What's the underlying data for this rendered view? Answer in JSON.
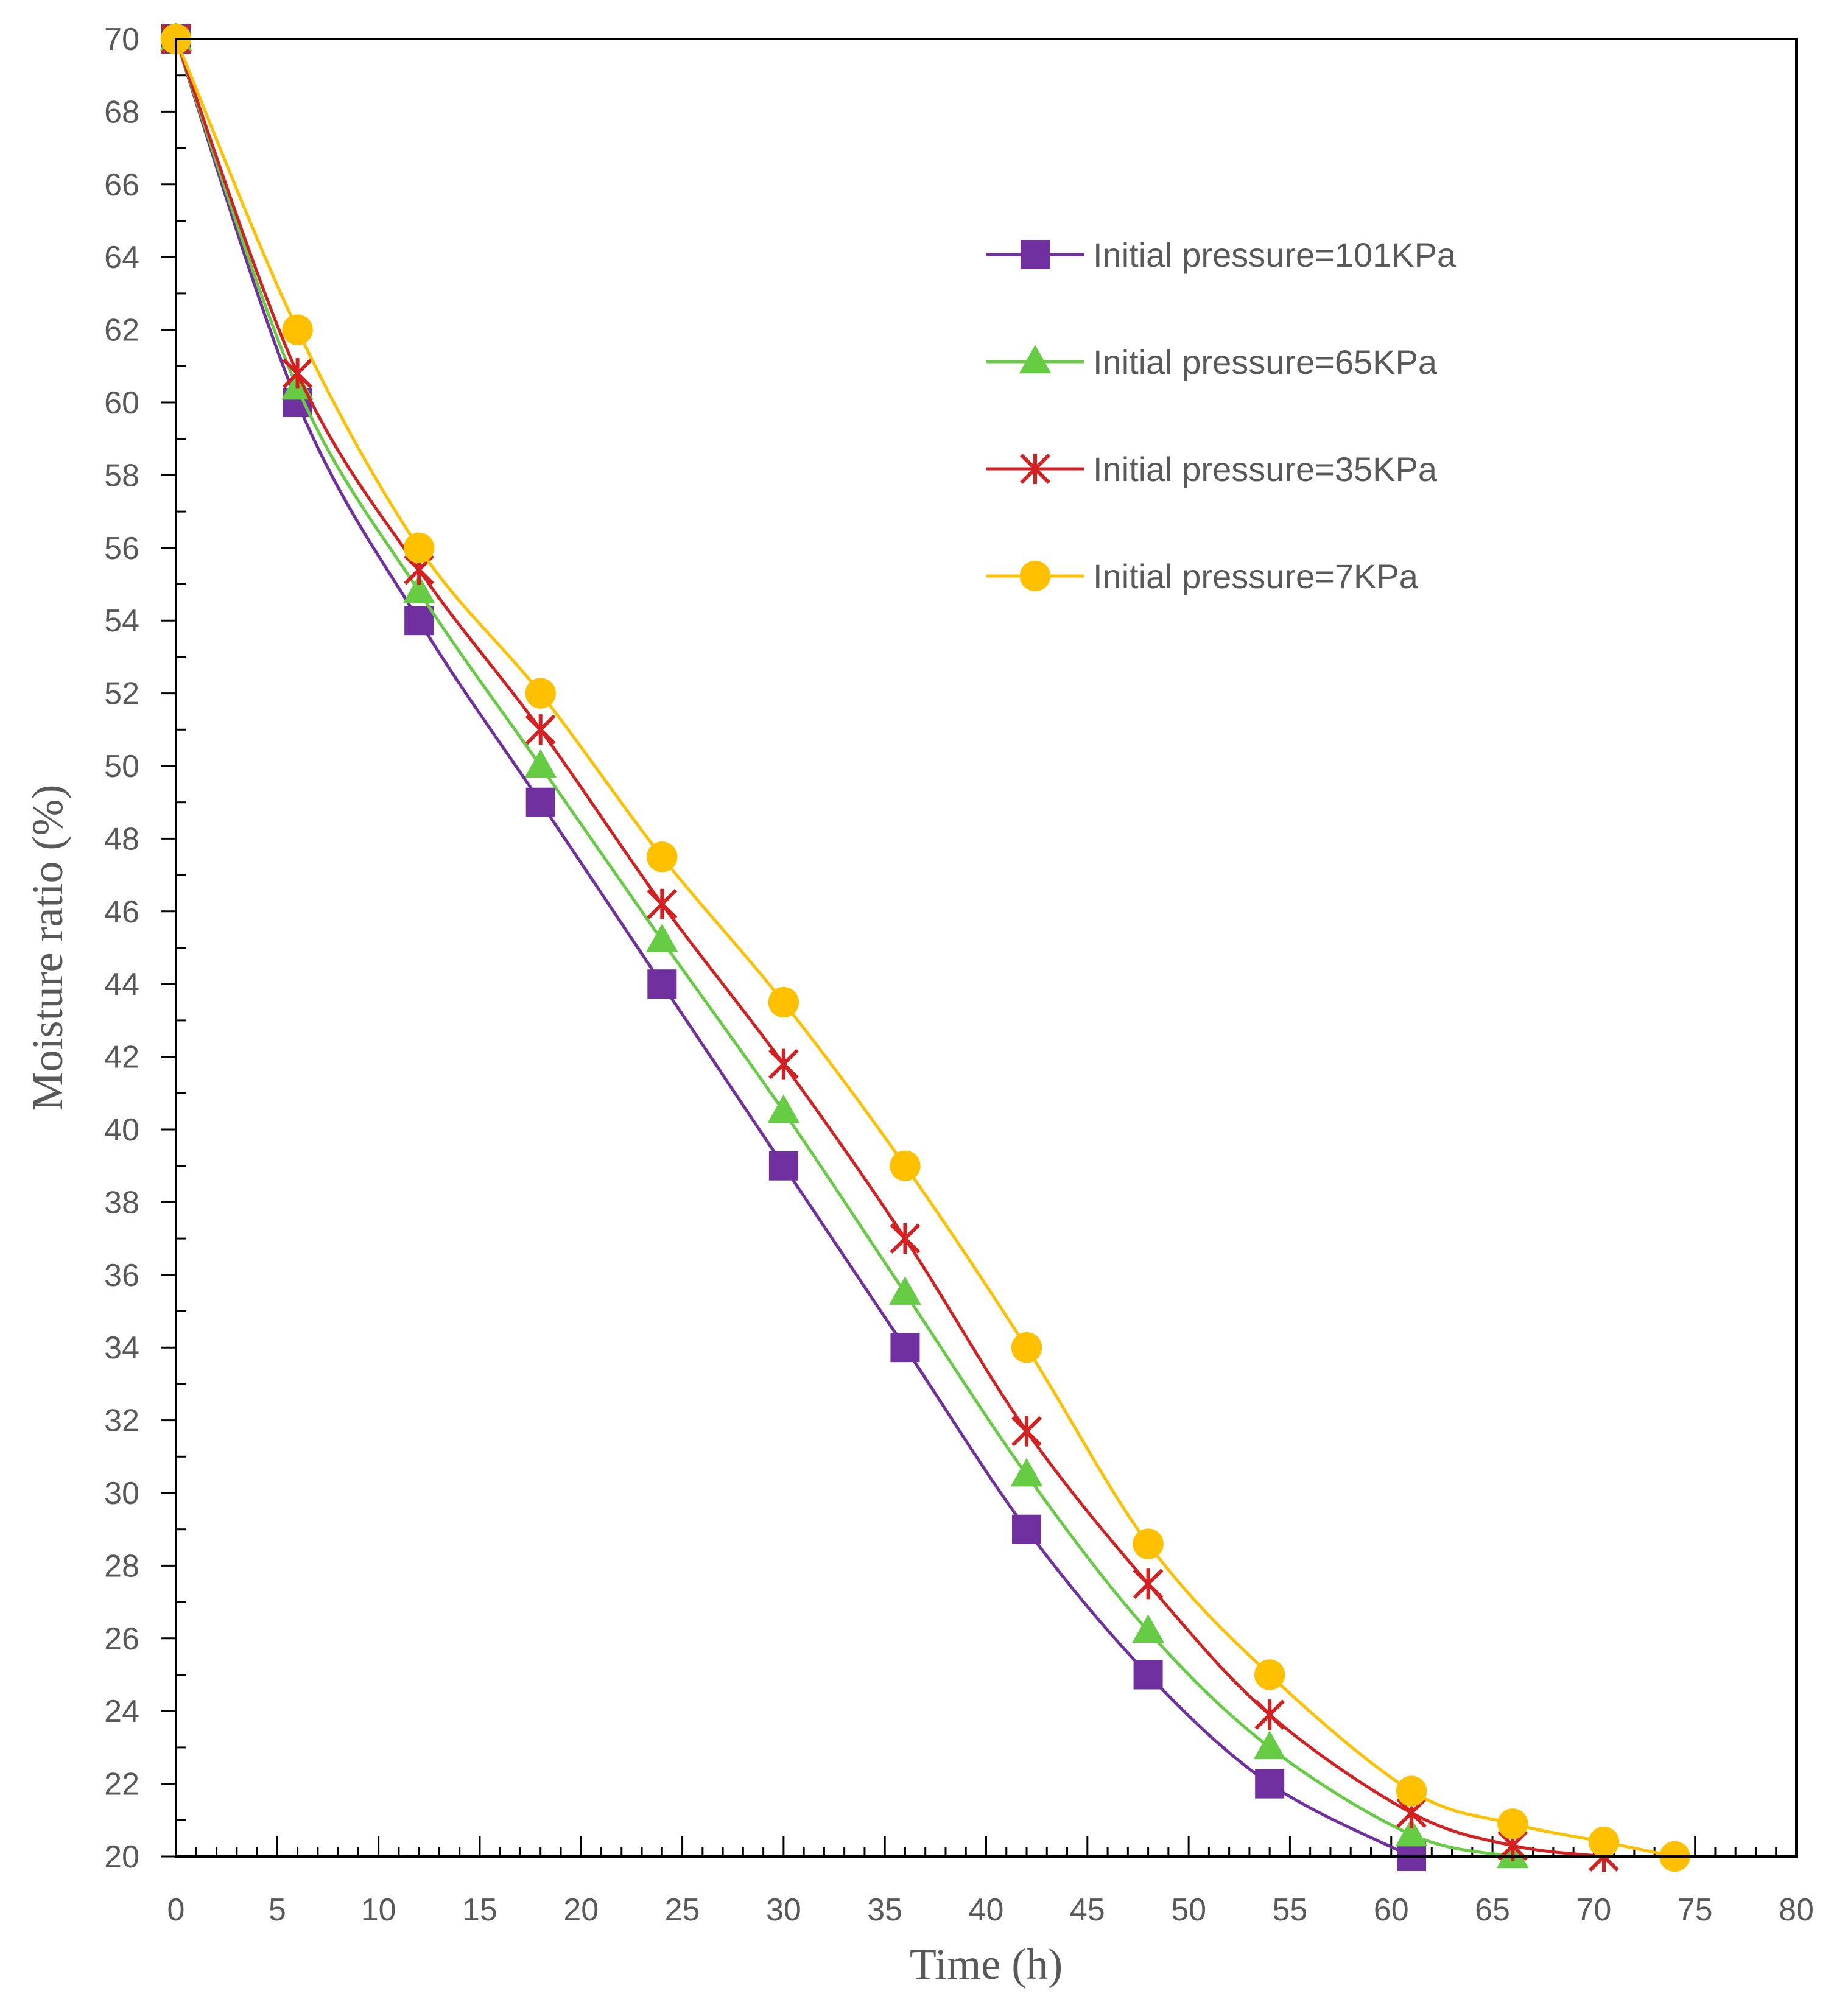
{
  "chart_data": {
    "type": "line",
    "xlabel": "Time (h)",
    "ylabel": "Moisture ratio (%)",
    "xlim": [
      0,
      80
    ],
    "ylim": [
      20,
      70
    ],
    "x_ticks": [
      0,
      5,
      10,
      15,
      20,
      25,
      30,
      35,
      40,
      45,
      50,
      55,
      60,
      65,
      70,
      75,
      80
    ],
    "y_ticks": [
      20,
      22,
      24,
      26,
      28,
      30,
      32,
      34,
      36,
      38,
      40,
      42,
      44,
      46,
      48,
      50,
      52,
      54,
      56,
      58,
      60,
      62,
      64,
      66,
      68,
      70
    ],
    "grid": false,
    "legend_position": "top-right",
    "series": [
      {
        "name": "Initial pressure=101KPa",
        "color": "#7030A0",
        "marker": "square",
        "x": [
          0,
          6,
          12,
          18,
          24,
          30,
          36,
          42,
          48,
          54,
          61
        ],
        "y": [
          70,
          60,
          54,
          49,
          44,
          39,
          34,
          29,
          25,
          22,
          20
        ]
      },
      {
        "name": "Initial pressure=65KPa",
        "color": "#66CC44",
        "marker": "triangle",
        "x": [
          0,
          6,
          12,
          18,
          24,
          30,
          36,
          42,
          48,
          54,
          61,
          66
        ],
        "y": [
          70,
          60.4,
          54.8,
          50,
          45.2,
          40.5,
          35.5,
          30.5,
          26.2,
          23,
          20.6,
          20
        ]
      },
      {
        "name": "Initial pressure=35KPa",
        "color": "#D42020",
        "marker": "star",
        "x": [
          0,
          6,
          12,
          18,
          24,
          30,
          36,
          42,
          48,
          54,
          61,
          66,
          70.5
        ],
        "y": [
          70,
          60.8,
          55.4,
          51,
          46.2,
          41.8,
          37,
          31.7,
          27.5,
          23.9,
          21.2,
          20.3,
          20
        ]
      },
      {
        "name": "Initial pressure=7KPa",
        "color": "#FFC000",
        "marker": "circle",
        "x": [
          0,
          6,
          12,
          18,
          24,
          30,
          36,
          42,
          48,
          54,
          61,
          66,
          70.5,
          74
        ],
        "y": [
          70,
          62,
          56,
          52,
          47.5,
          43.5,
          39,
          34,
          28.6,
          25,
          21.8,
          20.9,
          20.4,
          20
        ]
      }
    ]
  }
}
